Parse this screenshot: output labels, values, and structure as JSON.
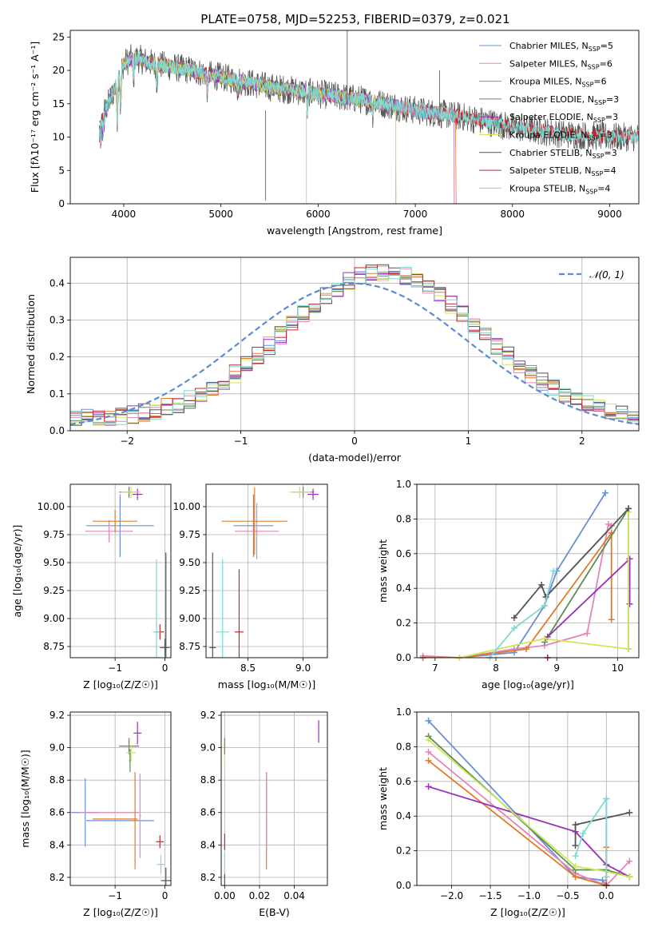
{
  "figure_title": "PLATE=0758, MJD=52253, FIBERID=0379, z=0.021",
  "colors": {
    "Chabrier MILES": "#6a8fd8",
    "Salpeter MILES": "#e484b8",
    "Kroupa MILES": "#e07b2a",
    "Chabrier ELODIE": "#5b8c55",
    "Salpeter ELODIE": "#9a2fb5",
    "Kroupa ELODIE": "#cfe55a",
    "Chabrier STELIB": "#555555",
    "Salpeter STELIB": "#c0282f",
    "Kroupa STELIB": "#7fd8d2",
    "gaussian": "#5b8bd6"
  },
  "chart_data": [
    {
      "id": "spectrum",
      "type": "line",
      "title": "PLATE=0758, MJD=52253, FIBERID=0379, z=0.021",
      "xlabel": "wavelength [Angstrom, rest frame]",
      "ylabel": "Flux [fλ10⁻¹⁷ erg cm⁻² s⁻¹ A⁻¹]",
      "xlim": [
        3450,
        9300
      ],
      "ylim": [
        0,
        26
      ],
      "xticks": [
        4000,
        5000,
        6000,
        7000,
        8000,
        9000
      ],
      "yticks": [
        0,
        5,
        10,
        15,
        20,
        25
      ],
      "grid": false,
      "legend": "top-right",
      "legend_entries": [
        {
          "label": "Chabrier MILES, N",
          "sub": "SSP",
          "tail": "=5",
          "series": "Chabrier MILES"
        },
        {
          "label": "Salpeter MILES, N",
          "sub": "SSP",
          "tail": "=6",
          "series": "Salpeter MILES"
        },
        {
          "label": "Kroupa MILES, N",
          "sub": "SSP",
          "tail": "=6",
          "series": "Kroupa MILES"
        },
        {
          "label": "Chabrier ELODIE, N",
          "sub": "SSP",
          "tail": "=3",
          "series": "Chabrier ELODIE"
        },
        {
          "label": "Salpeter ELODIE, N",
          "sub": "SSP",
          "tail": "=3",
          "series": "Salpeter ELODIE"
        },
        {
          "label": "Kroupa ELODIE, N",
          "sub": "SSP",
          "tail": "=3",
          "series": "Kroupa ELODIE"
        },
        {
          "label": "Chabrier STELIB, N",
          "sub": "SSP",
          "tail": "=3",
          "series": "Chabrier STELIB"
        },
        {
          "label": "Salpeter STELIB, N",
          "sub": "SSP",
          "tail": "=4",
          "series": "Salpeter STELIB"
        },
        {
          "label": "Kroupa STELIB, N",
          "sub": "SSP",
          "tail": "=4",
          "series": "Kroupa STELIB"
        }
      ],
      "continuum": {
        "x": [
          3750,
          3900,
          4000,
          4100,
          4300,
          4500,
          4700,
          5000,
          5500,
          6000,
          6500,
          7000,
          7500,
          8000,
          8500,
          9000
        ],
        "y": [
          12,
          17,
          21,
          22,
          21,
          20.5,
          20,
          19,
          17.5,
          16.5,
          15.5,
          14,
          13,
          11.5,
          10.5,
          10
        ]
      },
      "series_ranges": [
        {
          "series": "Chabrier MILES",
          "x0": 3750,
          "x1": 7400
        },
        {
          "series": "Salpeter MILES",
          "x0": 3750,
          "x1": 7400
        },
        {
          "series": "Kroupa MILES",
          "x0": 3750,
          "x1": 7420
        },
        {
          "series": "Chabrier ELODIE",
          "x0": 3750,
          "x1": 6800
        },
        {
          "series": "Salpeter ELODIE",
          "x0": 3750,
          "x1": 6800
        },
        {
          "series": "Kroupa ELODIE",
          "x0": 3900,
          "x1": 6800
        },
        {
          "series": "Chabrier STELIB",
          "x0": 3750,
          "x1": 9300
        },
        {
          "series": "Salpeter STELIB",
          "x0": 3750,
          "x1": 9300
        },
        {
          "series": "Kroupa STELIB",
          "x0": 3750,
          "x1": 9300
        }
      ]
    },
    {
      "id": "residuals",
      "type": "line",
      "xlabel": "(data-model)/error",
      "ylabel": "Normed distribution",
      "xlim": [
        -2.5,
        2.5
      ],
      "ylim": [
        0,
        0.47
      ],
      "xticks": [
        -2,
        -1,
        0,
        1,
        2
      ],
      "yticks": [
        0.0,
        0.1,
        0.2,
        0.3,
        0.4
      ],
      "grid": true,
      "legend": "top-right",
      "legend_label": "𝒩(0, 1)",
      "gaussian": {
        "mean": 0,
        "sigma": 1,
        "style": "dashed"
      },
      "histogram": {
        "bin_width": 0.1,
        "x_start": -2.5,
        "x_end": 2.5,
        "series_count": 9
      }
    },
    {
      "id": "age-vs-Z",
      "type": "scatter",
      "xlabel": "Z [log₁₀(Z/Z☉)]",
      "ylabel": "age  [log₁₀(age/yr)]",
      "xlim": [
        -1.9,
        0.12
      ],
      "ylim": [
        8.65,
        10.2
      ],
      "xticks": [
        -1,
        0
      ],
      "yticks": [
        8.75,
        9.0,
        9.25,
        9.5,
        9.75,
        10.0
      ],
      "grid": true,
      "points": [
        {
          "series": "Chabrier MILES",
          "x": -0.9,
          "xerr": 0.68,
          "y": 9.83,
          "yerr": 0.28
        },
        {
          "series": "Salpeter MILES",
          "x": -1.12,
          "xerr": 0.48,
          "y": 9.78,
          "yerr": 0.1
        },
        {
          "series": "Kroupa MILES",
          "x": -1.0,
          "xerr": 0.45,
          "y": 9.87,
          "yerr": 0.1
        },
        {
          "series": "Chabrier ELODIE",
          "x": -0.72,
          "xerr": 0.2,
          "y": 10.13,
          "yerr": 0.05
        },
        {
          "series": "Salpeter ELODIE",
          "x": -0.55,
          "xerr": 0.1,
          "y": 10.11,
          "yerr": 0.05
        },
        {
          "series": "Kroupa ELODIE",
          "x": -0.68,
          "xerr": 0.2,
          "y": 10.13,
          "yerr": 0.05
        },
        {
          "series": "Chabrier STELIB",
          "x": 0.0,
          "xerr": 0.1,
          "y": 8.74,
          "yerr": 0.08
        },
        {
          "series": "Salpeter STELIB",
          "x": -0.1,
          "xerr": 0.08,
          "y": 8.88,
          "yerr": 0.07
        },
        {
          "series": "Kroupa STELIB",
          "x": -0.17,
          "xerr": 0.07,
          "y": 8.88,
          "yerr": 0.65
        },
        {
          "series": "Chabrier STELIB",
          "x": 0.02,
          "xerr": 0.02,
          "y": 8.74,
          "yerr": 0.85
        }
      ]
    },
    {
      "id": "age-vs-mass",
      "type": "scatter",
      "xlabel": "mass [log₁₀(M/M☉)]",
      "ylabel": "",
      "xlim": [
        8.12,
        9.22
      ],
      "ylim": [
        8.65,
        10.2
      ],
      "xticks": [
        8.5,
        9.0
      ],
      "yticks": [
        8.75,
        9.0,
        9.25,
        9.5,
        9.75,
        10.0
      ],
      "grid": true,
      "points": [
        {
          "series": "Chabrier MILES",
          "x": 8.55,
          "xerr": 0.18,
          "y": 9.83,
          "yerr": 0.28
        },
        {
          "series": "Salpeter MILES",
          "x": 8.58,
          "xerr": 0.2,
          "y": 9.78,
          "yerr": 0.25
        },
        {
          "series": "Kroupa MILES",
          "x": 8.56,
          "xerr": 0.3,
          "y": 9.87,
          "yerr": 0.3
        },
        {
          "series": "Chabrier ELODIE",
          "x": 9.0,
          "xerr": 0.1,
          "y": 10.13,
          "yerr": 0.05
        },
        {
          "series": "Salpeter ELODIE",
          "x": 9.09,
          "xerr": 0.05,
          "y": 10.11,
          "yerr": 0.05
        },
        {
          "series": "Kroupa ELODIE",
          "x": 8.97,
          "xerr": 0.1,
          "y": 10.13,
          "yerr": 0.05
        },
        {
          "series": "Chabrier STELIB",
          "x": 8.18,
          "xerr": 0.03,
          "y": 8.74,
          "yerr": 0.85
        },
        {
          "series": "Salpeter STELIB",
          "x": 8.42,
          "xerr": 0.04,
          "y": 8.88,
          "yerr": 0.56
        },
        {
          "series": "Kroupa STELIB",
          "x": 8.27,
          "xerr": 0.06,
          "y": 8.88,
          "yerr": 0.65
        }
      ]
    },
    {
      "id": "weight-vs-age",
      "type": "line",
      "xlabel": "age  [log₁₀(age/yr)]",
      "ylabel": "mass weight",
      "xlim": [
        6.7,
        10.35
      ],
      "ylim": [
        0.0,
        1.0
      ],
      "xticks": [
        7,
        8,
        9,
        10
      ],
      "yticks": [
        0.0,
        0.2,
        0.4,
        0.6,
        0.8,
        1.0
      ],
      "grid": true,
      "series": [
        {
          "name": "Chabrier MILES",
          "x": [
            6.8,
            7.4,
            8.3,
            8.8,
            9.0,
            9.8
          ],
          "y": [
            0.0,
            0.0,
            0.03,
            0.3,
            0.5,
            0.95
          ]
        },
        {
          "name": "Salpeter MILES",
          "x": [
            6.8,
            7.4,
            8.3,
            8.8,
            9.5,
            9.85,
            9.9
          ],
          "y": [
            0.01,
            0.0,
            0.05,
            0.07,
            0.14,
            0.77,
            0.76
          ]
        },
        {
          "name": "Kroupa MILES",
          "x": [
            6.8,
            7.4,
            8.5,
            9.9,
            9.9
          ],
          "y": [
            0.0,
            0.0,
            0.05,
            0.72,
            0.22
          ]
        },
        {
          "name": "Chabrier ELODIE",
          "x": [
            8.8,
            10.18,
            10.18
          ],
          "y": [
            0.09,
            0.86,
            0.05
          ]
        },
        {
          "name": "Salpeter ELODIE",
          "x": [
            8.85,
            10.2,
            10.2
          ],
          "y": [
            0.12,
            0.57,
            0.31
          ]
        },
        {
          "name": "Kroupa ELODIE",
          "x": [
            7.4,
            8.8,
            10.18,
            10.18
          ],
          "y": [
            0.0,
            0.11,
            0.05,
            0.84
          ]
        },
        {
          "name": "Chabrier STELIB",
          "x": [
            8.3,
            8.75,
            8.82,
            10.18
          ],
          "y": [
            0.23,
            0.42,
            0.35,
            0.86
          ]
        },
        {
          "name": "Salpeter STELIB",
          "x": [
            8.85
          ],
          "y": [
            0.0
          ]
        },
        {
          "name": "Kroupa STELIB",
          "x": [
            7.9,
            8.3,
            8.8,
            8.95
          ],
          "y": [
            0.0,
            0.17,
            0.3,
            0.5
          ]
        }
      ]
    },
    {
      "id": "mass-vs-Z",
      "type": "scatter",
      "xlabel": "Z [log₁₀(Z/Z☉)]",
      "ylabel": "mass [log₁₀(M/M☉)]",
      "xlim": [
        -1.9,
        0.12
      ],
      "ylim": [
        8.15,
        9.22
      ],
      "xticks": [
        -1,
        0
      ],
      "yticks": [
        8.2,
        8.4,
        8.6,
        8.8,
        9.0,
        9.2
      ],
      "grid": true,
      "points": [
        {
          "series": "Chabrier MILES",
          "x": -1.6,
          "xerr": 0.28,
          "y": 8.6,
          "yerr": 0.21
        },
        {
          "series": "Chabrier MILES",
          "x": -0.9,
          "xerr": 0.68,
          "y": 8.55,
          "yerr": 0.0
        },
        {
          "series": "Salpeter MILES",
          "x": -0.5,
          "xerr": 0.02,
          "y": 8.58,
          "yerr": 0.26
        },
        {
          "series": "Salpeter MILES",
          "x": -1.12,
          "xerr": 0.6,
          "y": 8.6,
          "yerr": 0.0
        },
        {
          "series": "Kroupa MILES",
          "x": -0.6,
          "xerr": 0.05,
          "y": 8.55,
          "yerr": 0.3
        },
        {
          "series": "Kroupa MILES",
          "x": -1.0,
          "xerr": 0.45,
          "y": 8.56,
          "yerr": 0.0
        },
        {
          "series": "Chabrier ELODIE",
          "x": -0.72,
          "xerr": 0.2,
          "y": 9.01,
          "yerr": 0.05
        },
        {
          "series": "Chabrier ELODIE",
          "x": -0.7,
          "xerr": 0.02,
          "y": 8.92,
          "yerr": 0.07
        },
        {
          "series": "Salpeter ELODIE",
          "x": -0.55,
          "xerr": 0.08,
          "y": 9.09,
          "yerr": 0.07
        },
        {
          "series": "Kroupa ELODIE",
          "x": -0.68,
          "xerr": 0.1,
          "y": 8.97,
          "yerr": 0.05
        },
        {
          "series": "Chabrier STELIB",
          "x": 0.02,
          "xerr": 0.1,
          "y": 8.18,
          "yerr": 0.08
        },
        {
          "series": "Salpeter STELIB",
          "x": -0.1,
          "xerr": 0.08,
          "y": 8.42,
          "yerr": 0.04
        },
        {
          "series": "Kroupa STELIB",
          "x": -0.08,
          "xerr": 0.08,
          "y": 8.28,
          "yerr": 0.06
        }
      ]
    },
    {
      "id": "mass-vs-EBV",
      "type": "scatter",
      "xlabel": "E(B-V)",
      "ylabel": "",
      "xlim": [
        -0.002,
        0.059
      ],
      "ylim": [
        8.15,
        9.22
      ],
      "xticks": [
        0.0,
        0.02,
        0.04
      ],
      "yticks": [
        8.2,
        8.4,
        8.6,
        8.8,
        9.0,
        9.2
      ],
      "grid": true,
      "points": [
        {
          "series": "Kroupa MILES",
          "x": 0.024,
          "xerr": 0.0,
          "y": 8.55,
          "yerr": 0.3
        },
        {
          "series": "Salpeter MILES",
          "x": 0.024,
          "xerr": 0.0,
          "y": 8.6,
          "yerr": 0.24
        },
        {
          "series": "Salpeter ELODIE",
          "x": 0.054,
          "xerr": 0.0,
          "y": 9.1,
          "yerr": 0.07
        },
        {
          "series": "Kroupa ELODIE",
          "x": 0.0,
          "xerr": 0.0,
          "y": 8.97,
          "yerr": 0.08
        },
        {
          "series": "Chabrier ELODIE",
          "x": 0.0,
          "xerr": 0.0,
          "y": 9.01,
          "yerr": 0.05
        },
        {
          "series": "Salpeter STELIB",
          "x": 0.0,
          "xerr": 0.0,
          "y": 8.42,
          "yerr": 0.05
        },
        {
          "series": "Kroupa STELIB",
          "x": 0.0,
          "xerr": 0.0,
          "y": 8.28,
          "yerr": 0.07
        },
        {
          "series": "Chabrier STELIB",
          "x": 0.0,
          "xerr": 0.0,
          "y": 8.18,
          "yerr": 0.04
        }
      ]
    },
    {
      "id": "weight-vs-Z",
      "type": "line",
      "xlabel": "Z [log₁₀(Z/Z☉)]",
      "ylabel": "mass weight",
      "xlim": [
        -2.45,
        0.42
      ],
      "ylim": [
        0.0,
        1.0
      ],
      "xticks": [
        -2.0,
        -1.5,
        -1.0,
        -0.5,
        0.0
      ],
      "yticks": [
        0.0,
        0.2,
        0.4,
        0.6,
        0.8,
        1.0
      ],
      "grid": true,
      "series": [
        {
          "name": "Chabrier MILES",
          "x": [
            -2.3,
            -0.4,
            -0.05,
            0.0,
            0.0
          ],
          "y": [
            0.95,
            0.05,
            0.03,
            0.0,
            0.5
          ]
        },
        {
          "name": "Salpeter MILES",
          "x": [
            -2.3,
            -0.4,
            0.0,
            0.3
          ],
          "y": [
            0.77,
            0.07,
            0.0,
            0.14
          ]
        },
        {
          "name": "Kroupa MILES",
          "x": [
            -2.3,
            -0.4,
            0.0,
            0.0
          ],
          "y": [
            0.72,
            0.05,
            0.0,
            0.22
          ]
        },
        {
          "name": "Chabrier ELODIE",
          "x": [
            -2.3,
            -0.4,
            0.0,
            0.3
          ],
          "y": [
            0.86,
            0.09,
            0.09,
            0.05
          ]
        },
        {
          "name": "Salpeter ELODIE",
          "x": [
            -2.3,
            -0.4,
            0.0,
            0.3
          ],
          "y": [
            0.57,
            0.31,
            0.12,
            0.05
          ]
        },
        {
          "name": "Kroupa ELODIE",
          "x": [
            -2.3,
            -0.4,
            0.0,
            0.3
          ],
          "y": [
            0.84,
            0.11,
            0.08,
            0.05
          ]
        },
        {
          "name": "Chabrier STELIB",
          "x": [
            -0.4,
            -0.4,
            0.3
          ],
          "y": [
            0.23,
            0.35,
            0.42
          ]
        },
        {
          "name": "Salpeter STELIB",
          "x": [
            0.0
          ],
          "y": [
            0.0
          ]
        },
        {
          "name": "Kroupa STELIB",
          "x": [
            -0.4,
            -0.3,
            0.0,
            0.0
          ],
          "y": [
            0.17,
            0.3,
            0.5,
            0.05
          ]
        }
      ]
    }
  ]
}
